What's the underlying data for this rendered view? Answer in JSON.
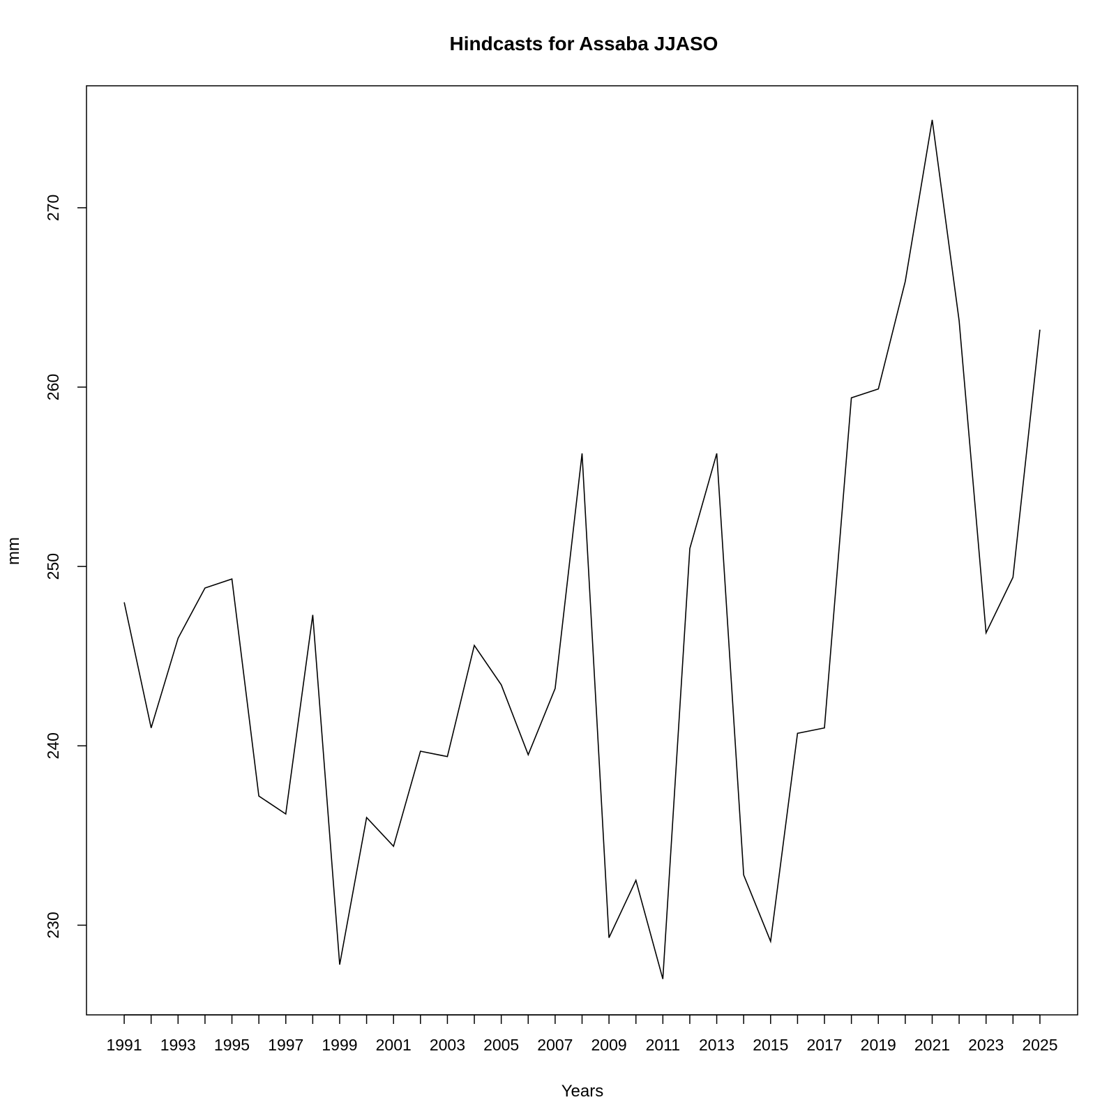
{
  "chart_data": {
    "type": "line",
    "title": "Hindcasts for Assaba JJASO",
    "xlabel": "Years",
    "ylabel": "mm",
    "xlim": [
      1989.6,
      2026.4
    ],
    "ylim": [
      225,
      276.8
    ],
    "x_ticks": [
      1991,
      1992,
      1993,
      1994,
      1995,
      1996,
      1997,
      1998,
      1999,
      2000,
      2001,
      2002,
      2003,
      2004,
      2005,
      2006,
      2007,
      2008,
      2009,
      2010,
      2011,
      2012,
      2013,
      2014,
      2015,
      2016,
      2017,
      2018,
      2019,
      2020,
      2021,
      2022,
      2023,
      2024,
      2025
    ],
    "x_tick_labels": [
      "1991",
      "",
      "1993",
      "",
      "1995",
      "",
      "1997",
      "",
      "1999",
      "",
      "2001",
      "",
      "2003",
      "",
      "2005",
      "",
      "2007",
      "",
      "2009",
      "",
      "2011",
      "",
      "2013",
      "",
      "2015",
      "",
      "2017",
      "",
      "2019",
      "",
      "2021",
      "",
      "2023",
      "",
      "2025"
    ],
    "y_ticks": [
      230,
      240,
      250,
      260,
      270
    ],
    "y_tick_labels": [
      "230",
      "240",
      "250",
      "260",
      "270"
    ],
    "grid": false,
    "legend": "none",
    "line_color": "#000000",
    "series": [
      {
        "x": [
          1991,
          1992,
          1993,
          1994,
          1995,
          1996,
          1997,
          1998,
          1999,
          2000,
          2001,
          2002,
          2003,
          2004,
          2005,
          2006,
          2007,
          2008,
          2009,
          2010,
          2011,
          2012,
          2013,
          2014,
          2015,
          2016,
          2017,
          2018,
          2019,
          2020,
          2021,
          2022,
          2023,
          2024,
          2025
        ],
        "values": [
          248.0,
          241.0,
          246.0,
          248.8,
          249.3,
          237.2,
          236.2,
          247.3,
          227.8,
          236.0,
          234.4,
          239.7,
          239.4,
          245.6,
          243.4,
          239.5,
          243.2,
          256.3,
          229.3,
          232.5,
          227.0,
          251.0,
          256.3,
          232.8,
          229.1,
          240.7,
          241.0,
          259.4,
          259.9,
          265.9,
          274.9,
          263.7,
          246.3,
          249.4,
          263.2
        ]
      }
    ]
  }
}
